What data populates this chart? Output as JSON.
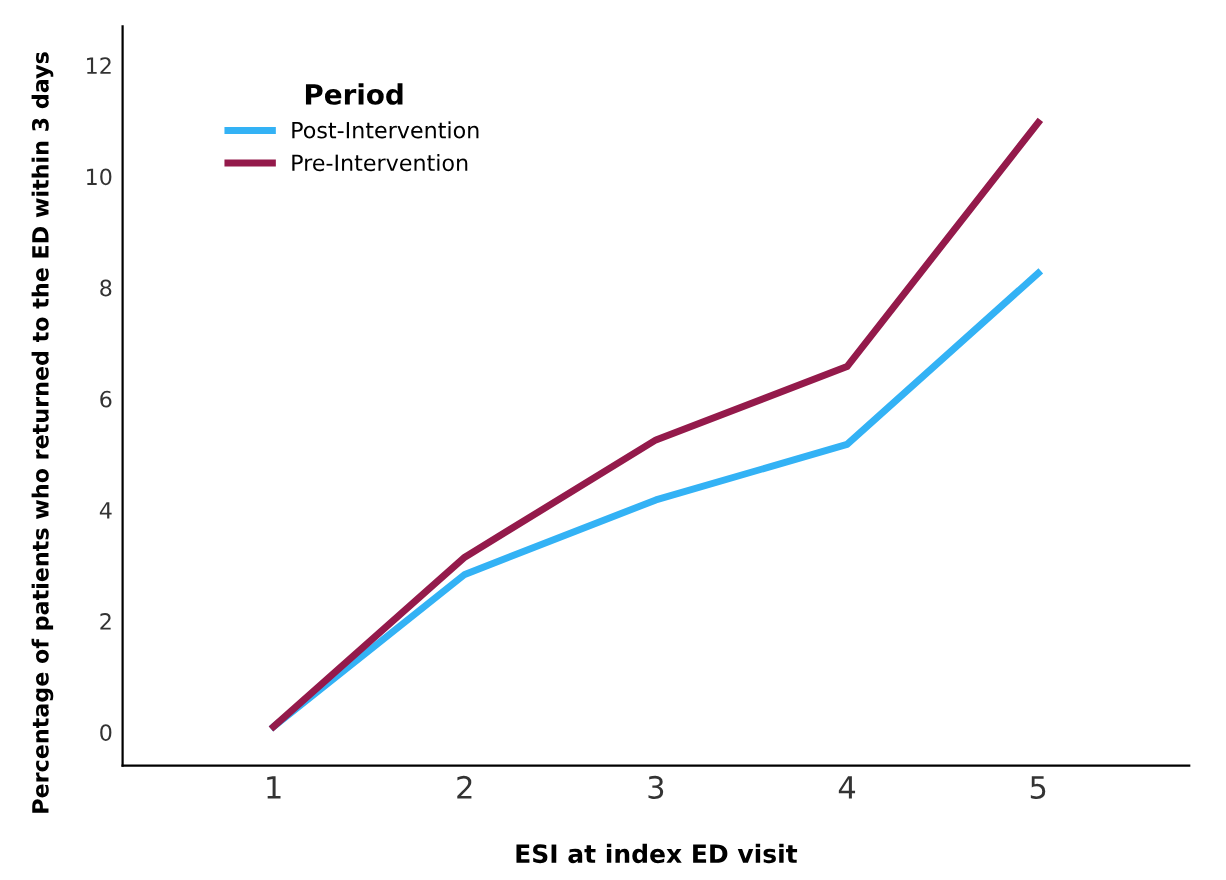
{
  "chart_data": {
    "type": "line",
    "xlabel": "ESI at index ED visit",
    "ylabel": "Percentage of patients who returned to the ED within 3 days",
    "legend_title": "Period",
    "x": [
      1,
      2,
      3,
      4,
      5
    ],
    "series": [
      {
        "name": "Post-Intervention",
        "color": "#33b2f5",
        "values": [
          0.1,
          2.84,
          4.18,
          5.18,
          8.26
        ]
      },
      {
        "name": "Pre-Intervention",
        "color": "#941a4b",
        "values": [
          0.1,
          3.15,
          5.26,
          6.58,
          10.97
        ]
      }
    ],
    "xlim": [
      0.21,
      5.79
    ],
    "xticks": [
      1,
      2,
      3,
      4,
      5
    ],
    "ylim": [
      -0.6,
      12.7
    ],
    "yticks": [
      0,
      2,
      4,
      6,
      8,
      10,
      12
    ],
    "grid": false,
    "legend": "top left",
    "marker": "none",
    "line_style": "solid"
  }
}
